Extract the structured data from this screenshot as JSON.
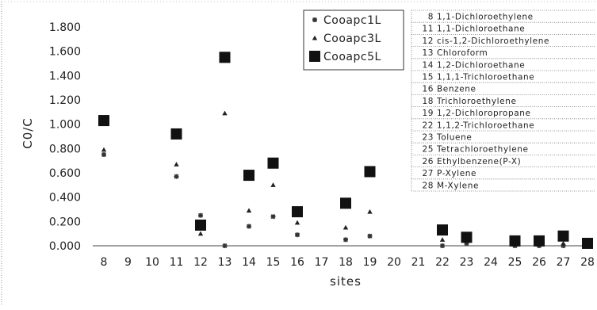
{
  "chart_data": {
    "type": "scatter",
    "ylabel": "C0/C",
    "xlabel": "sites",
    "xlim": [
      8,
      28
    ],
    "ylim": [
      0,
      1.8
    ],
    "x_ticks": [
      "8",
      "9",
      "10",
      "11",
      "12",
      "13",
      "14",
      "15",
      "16",
      "17",
      "18",
      "19",
      "20",
      "21",
      "22",
      "23",
      "24",
      "25",
      "26",
      "27",
      "28"
    ],
    "y_ticks": [
      "0.000",
      "0.200",
      "0.400",
      "0.600",
      "0.800",
      "1.000",
      "1.200",
      "1.400",
      "1.600",
      "1.800"
    ],
    "grid": false,
    "legend_position": "top-center",
    "series": [
      {
        "name": "Cooapc1L",
        "marker": "asterisk",
        "x": [
          8,
          11,
          12,
          13,
          14,
          15,
          16,
          18,
          19,
          22,
          23,
          25,
          26,
          27,
          28
        ],
        "y": [
          0.75,
          0.57,
          0.25,
          0.0,
          0.16,
          0.24,
          0.09,
          0.05,
          0.08,
          0.0,
          0.02,
          0.0,
          0.0,
          0.0,
          0.0
        ]
      },
      {
        "name": "Cooapc3L",
        "marker": "triangle",
        "x": [
          8,
          11,
          12,
          13,
          14,
          15,
          16,
          18,
          19,
          22,
          23,
          25,
          26,
          27,
          28
        ],
        "y": [
          0.79,
          0.67,
          0.1,
          1.09,
          0.29,
          0.5,
          0.19,
          0.15,
          0.28,
          0.05,
          0.04,
          0.01,
          0.01,
          0.02,
          0.01
        ]
      },
      {
        "name": "Cooapc5L",
        "marker": "square",
        "x": [
          8,
          11,
          12,
          13,
          14,
          15,
          16,
          18,
          19,
          22,
          23,
          25,
          26,
          27,
          28
        ],
        "y": [
          1.03,
          0.92,
          0.17,
          1.55,
          0.58,
          0.68,
          0.28,
          0.35,
          0.61,
          0.13,
          0.07,
          0.04,
          0.04,
          0.08,
          0.02
        ]
      }
    ],
    "site_table": [
      {
        "num": "8",
        "name": "1,1-Dichloroethylene"
      },
      {
        "num": "11",
        "name": "1,1-Dichloroethane"
      },
      {
        "num": "12",
        "name": "cis-1,2-Dichloroethylene"
      },
      {
        "num": "13",
        "name": "Chloroform"
      },
      {
        "num": "14",
        "name": "1,2-Dichloroethane"
      },
      {
        "num": "15",
        "name": "1,1,1-Trichloroethane"
      },
      {
        "num": "16",
        "name": "Benzene"
      },
      {
        "num": "18",
        "name": "Trichloroethylene"
      },
      {
        "num": "19",
        "name": "1,2-Dichloropropane"
      },
      {
        "num": "22",
        "name": "1,1,2-Trichloroethane"
      },
      {
        "num": "23",
        "name": "Toluene"
      },
      {
        "num": "25",
        "name": "Tetrachloroethylene"
      },
      {
        "num": "26",
        "name": "Ethylbenzene(P-X)"
      },
      {
        "num": "27",
        "name": "P-Xylene"
      },
      {
        "num": "28",
        "name": "M-Xylene"
      }
    ]
  }
}
